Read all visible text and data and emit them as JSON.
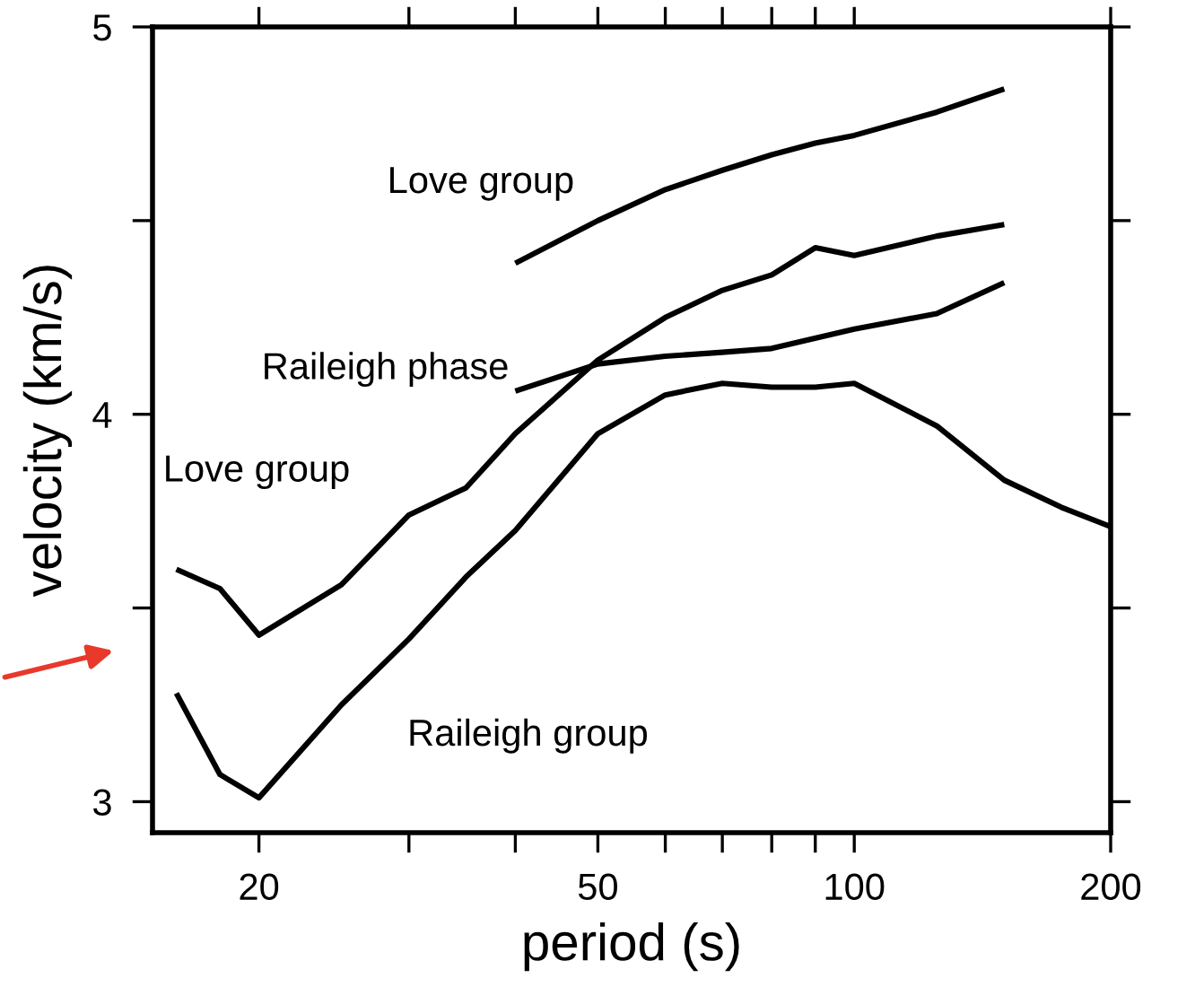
{
  "chart_data": {
    "type": "line",
    "xlabel": "period (s)",
    "ylabel": "velocity (km/s)",
    "log": "x",
    "xlim": [
      15,
      200
    ],
    "xticks": [
      20,
      {
        "value": 30,
        "label": null
      },
      {
        "value": 40,
        "label": null
      },
      50,
      {
        "value": 60,
        "label": null
      },
      {
        "value": 70,
        "label": null
      },
      {
        "value": 80,
        "label": null
      },
      {
        "value": 90,
        "label": null
      },
      100,
      200
    ],
    "ylim": [
      2.92,
      5
    ],
    "yticks": [
      3,
      {
        "value": 3.5,
        "label": null
      },
      4,
      {
        "value": 4.5,
        "label": null
      },
      5
    ],
    "line_style": "solid",
    "marker": "none",
    "series": [
      {
        "name": "Love group",
        "color": "#000000",
        "x": [
          40,
          50,
          60,
          70,
          80,
          90,
          100,
          125,
          150
        ],
        "values": [
          4.39,
          4.5,
          4.58,
          4.63,
          4.67,
          4.7,
          4.72,
          4.78,
          4.84
        ]
      },
      {
        "name": "Love group",
        "color": "#000000",
        "x": [
          16,
          18,
          20,
          25,
          30,
          35,
          40,
          50,
          60,
          70,
          80,
          90,
          100,
          125,
          150
        ],
        "values": [
          3.6,
          3.55,
          3.43,
          3.56,
          3.74,
          3.81,
          3.95,
          4.14,
          4.25,
          4.32,
          4.36,
          4.43,
          4.41,
          4.46,
          4.49
        ]
      },
      {
        "name": "Raileigh phase",
        "color": "#000000",
        "x": [
          40,
          50,
          60,
          70,
          80,
          100,
          125,
          150
        ],
        "values": [
          4.06,
          4.13,
          4.15,
          4.16,
          4.17,
          4.22,
          4.26,
          4.34
        ]
      },
      {
        "name": "Raileigh group",
        "color": "#000000",
        "x": [
          16,
          18,
          20,
          25,
          30,
          35,
          40,
          50,
          60,
          70,
          80,
          90,
          100,
          125,
          150,
          175,
          200
        ],
        "values": [
          3.28,
          3.07,
          3.01,
          3.25,
          3.42,
          3.58,
          3.7,
          3.95,
          4.05,
          4.08,
          4.07,
          4.07,
          4.08,
          3.97,
          3.83,
          3.76,
          3.71
        ]
      }
    ]
  }
}
